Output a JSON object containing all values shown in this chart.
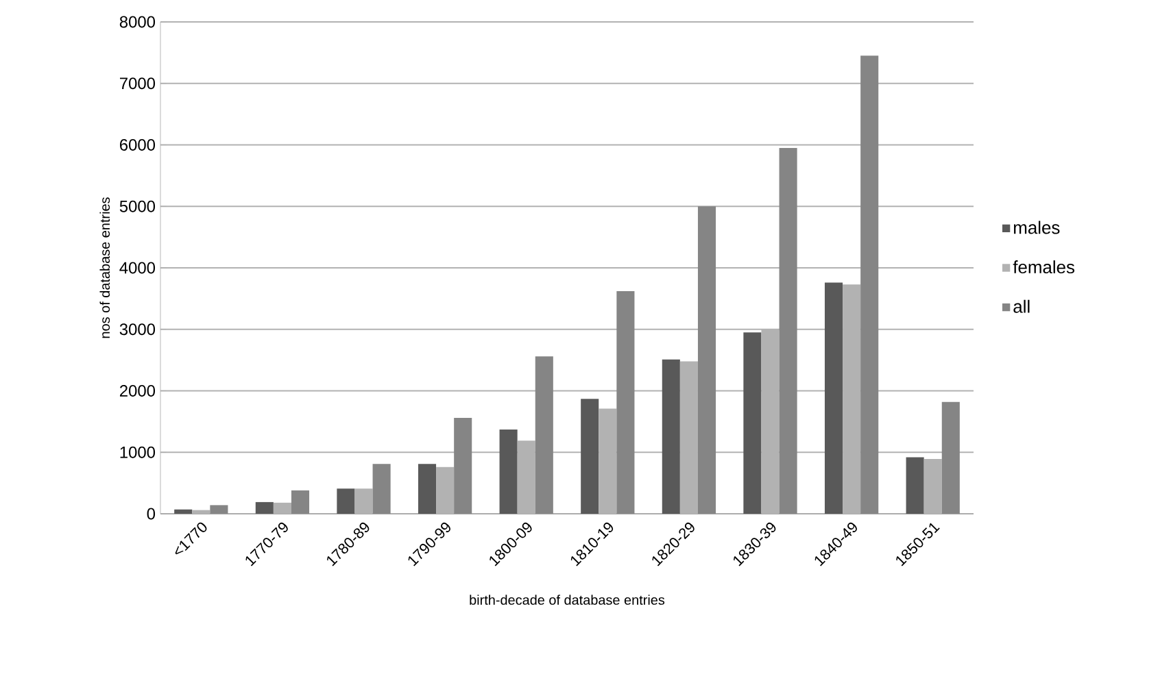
{
  "chart_data": {
    "type": "bar",
    "xlabel": "birth-decade of database entries",
    "ylabel": "nos of database entries",
    "categories": [
      "<1770",
      "1770-79",
      "1780-89",
      "1790-99",
      "1800-09",
      "1810-19",
      "1820-29",
      "1830-39",
      "1840-49",
      "1850-51"
    ],
    "series": [
      {
        "name": "males",
        "color": "#595959",
        "values": [
          70,
          190,
          410,
          810,
          1370,
          1870,
          2510,
          2950,
          3760,
          920
        ]
      },
      {
        "name": "females",
        "color": "#b2b2b2",
        "values": [
          60,
          180,
          410,
          760,
          1190,
          1710,
          2480,
          3000,
          3730,
          890
        ]
      },
      {
        "name": "all",
        "color": "#858585",
        "values": [
          140,
          380,
          810,
          1560,
          2560,
          3620,
          5000,
          5950,
          7450,
          1820
        ]
      }
    ],
    "ylim": [
      0,
      8000
    ],
    "yticks": [
      0,
      1000,
      2000,
      3000,
      4000,
      5000,
      6000,
      7000,
      8000
    ],
    "grid": "y",
    "legend": "right"
  }
}
